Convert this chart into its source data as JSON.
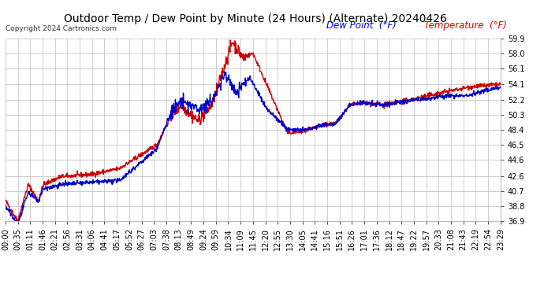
{
  "title": "Outdoor Temp / Dew Point by Minute (24 Hours) (Alternate) 20240426",
  "copyright": "Copyright 2024 Cartronics.com",
  "legend_dew": "Dew Point  (°F)",
  "legend_temp": "Temperature  (°F)",
  "dew_color": "#0000cc",
  "temp_color": "#cc0000",
  "bg_color": "#ffffff",
  "grid_color": "#bbbbbb",
  "ylim": [
    36.9,
    59.9
  ],
  "yticks": [
    36.9,
    38.8,
    40.7,
    42.6,
    44.6,
    46.5,
    48.4,
    50.3,
    52.2,
    54.1,
    56.1,
    58.0,
    59.9
  ],
  "xtick_labels": [
    "00:00",
    "00:35",
    "01:11",
    "01:46",
    "02:21",
    "02:56",
    "03:31",
    "04:06",
    "04:41",
    "05:17",
    "05:52",
    "06:27",
    "07:03",
    "07:38",
    "08:13",
    "08:49",
    "09:24",
    "09:59",
    "10:34",
    "11:09",
    "11:45",
    "12:20",
    "12:55",
    "13:30",
    "14:05",
    "14:41",
    "15:16",
    "15:51",
    "16:26",
    "17:01",
    "17:36",
    "18:12",
    "18:47",
    "19:22",
    "19:57",
    "20:33",
    "21:08",
    "21:43",
    "22:19",
    "22:54",
    "23:29"
  ],
  "line_width": 1.0,
  "title_fontsize": 10,
  "tick_fontsize": 7,
  "legend_fontsize": 8.5
}
